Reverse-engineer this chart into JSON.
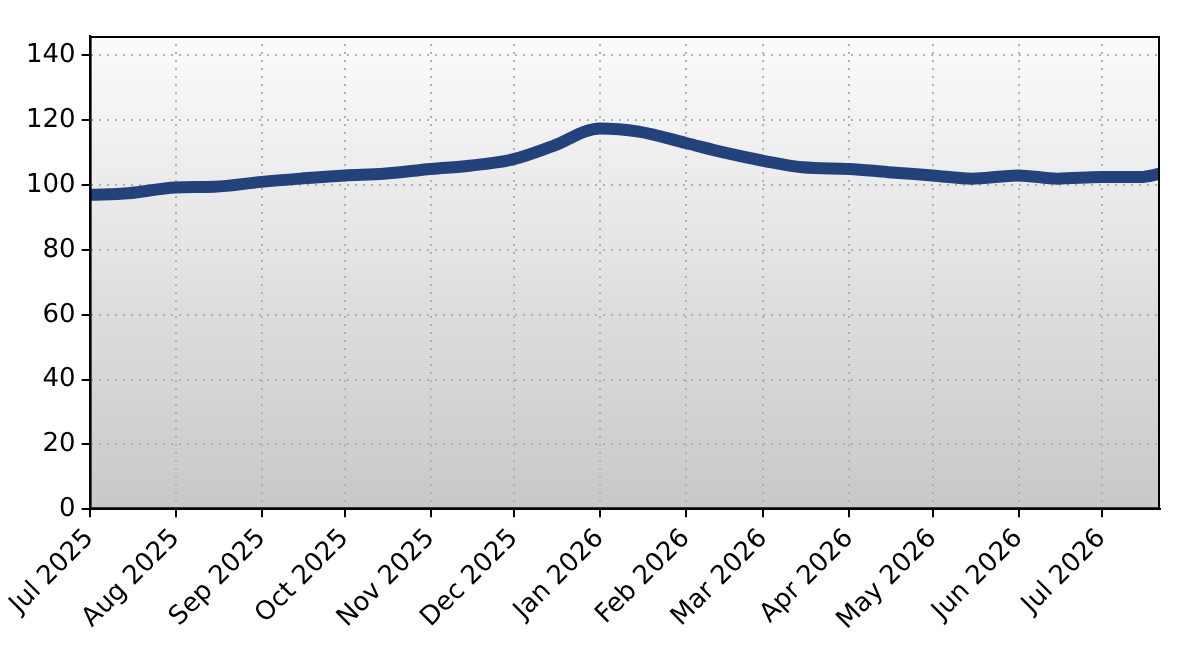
{
  "chart_data": {
    "type": "line",
    "x": [
      "2025-07-01",
      "2025-07-15",
      "2025-08-01",
      "2025-08-15",
      "2025-09-01",
      "2025-09-15",
      "2025-10-01",
      "2025-10-15",
      "2025-11-01",
      "2025-11-15",
      "2025-12-01",
      "2025-12-15",
      "2026-01-01",
      "2026-01-15",
      "2026-02-01",
      "2026-02-15",
      "2026-03-01",
      "2026-03-15",
      "2026-04-01",
      "2026-04-15",
      "2026-05-01",
      "2026-05-15",
      "2026-06-01",
      "2026-06-15",
      "2026-07-01",
      "2026-07-15",
      "2026-07-22"
    ],
    "series": [
      {
        "color": "#23427c",
        "values": [
          97,
          97.5,
          99.3,
          99.5,
          101,
          102,
          103,
          103.5,
          105,
          106,
          108,
          112,
          117.5,
          116.5,
          113,
          110,
          107.5,
          105.5,
          105,
          104,
          103,
          102,
          103,
          102,
          102.5,
          102.5,
          103.5
        ]
      }
    ],
    "xlim": [
      "2025-07-01",
      "2026-07-22"
    ],
    "xticks": [
      {
        "value": "2025-07-01",
        "label": "Jul 2025"
      },
      {
        "value": "2025-08-01",
        "label": "Aug 2025"
      },
      {
        "value": "2025-09-01",
        "label": "Sep 2025"
      },
      {
        "value": "2025-10-01",
        "label": "Oct 2025"
      },
      {
        "value": "2025-11-01",
        "label": "Nov 2025"
      },
      {
        "value": "2025-12-01",
        "label": "Dec 2025"
      },
      {
        "value": "2026-01-01",
        "label": "Jan 2026"
      },
      {
        "value": "2026-02-01",
        "label": "Feb 2026"
      },
      {
        "value": "2026-03-01",
        "label": "Mar 2026"
      },
      {
        "value": "2026-04-01",
        "label": "Apr 2026"
      },
      {
        "value": "2026-05-01",
        "label": "May 2026"
      },
      {
        "value": "2026-06-01",
        "label": "Jun 2026"
      },
      {
        "value": "2026-07-01",
        "label": "Jul 2026"
      }
    ],
    "ylim": [
      0,
      146
    ],
    "yticks": [
      0,
      20,
      40,
      60,
      80,
      100,
      120,
      140
    ],
    "grid": true,
    "legend": false,
    "marker": "none",
    "line_style": "solid"
  }
}
